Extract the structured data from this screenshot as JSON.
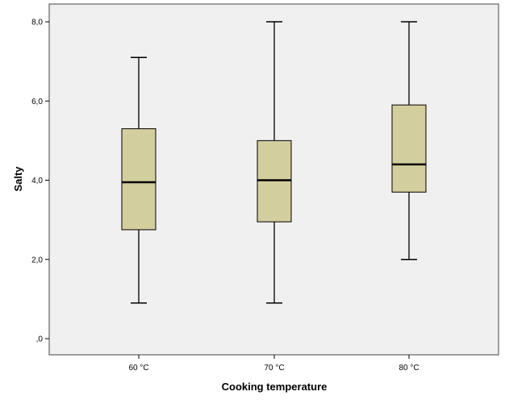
{
  "chart_data": {
    "type": "boxplot",
    "xlabel": "Cooking temperature",
    "ylabel": "Salty",
    "ylim": [
      0,
      8
    ],
    "yticks": [
      0,
      2,
      4,
      6,
      8
    ],
    "ytick_labels": [
      ",0",
      "2,0",
      "4,0",
      "6,0",
      "8,0"
    ],
    "grid": false,
    "categories": [
      "60 °C",
      "70 °C",
      "80 °C"
    ],
    "boxes": [
      {
        "category": "60 °C",
        "whisker_low": 0.9,
        "q1": 2.75,
        "median": 3.95,
        "q3": 5.3,
        "whisker_high": 7.1
      },
      {
        "category": "70 °C",
        "whisker_low": 0.9,
        "q1": 2.95,
        "median": 4.0,
        "q3": 5.0,
        "whisker_high": 8.0
      },
      {
        "category": "80 °C",
        "whisker_low": 2.0,
        "q1": 3.7,
        "median": 4.4,
        "q3": 5.9,
        "whisker_high": 8.0
      }
    ],
    "colors": {
      "plot_background": "#f0f0f0",
      "box_fill": "#d3ce9d",
      "stroke": "#000000"
    }
  }
}
